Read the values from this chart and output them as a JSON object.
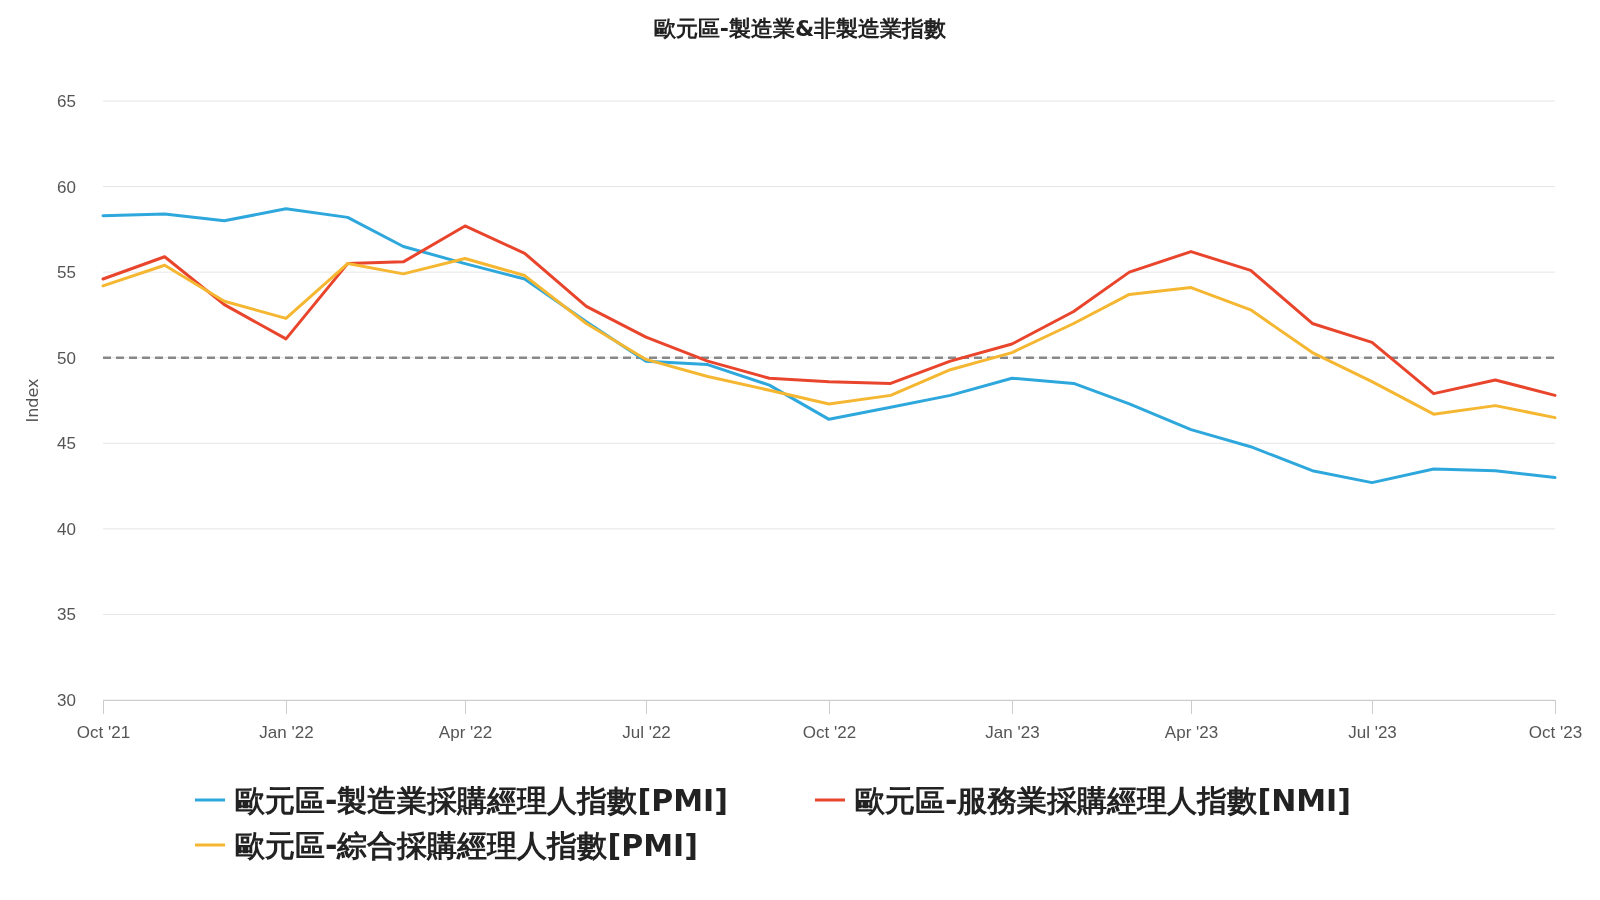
{
  "chart_data": {
    "type": "line",
    "title": "歐元區-製造業&非製造業指數",
    "ylabel": "Index",
    "x": [
      "2021-10",
      "2021-11",
      "2021-12",
      "2022-01",
      "2022-02",
      "2022-03",
      "2022-04",
      "2022-05",
      "2022-06",
      "2022-07",
      "2022-08",
      "2022-09",
      "2022-10",
      "2022-11",
      "2022-12",
      "2023-01",
      "2023-02",
      "2023-03",
      "2023-04",
      "2023-05",
      "2023-06",
      "2023-07",
      "2023-08",
      "2023-09",
      "2023-10"
    ],
    "series": [
      {
        "name": "歐元區-製造業採購經理人指數[PMI]",
        "color": "#2ea8dc",
        "values": [
          58.3,
          58.4,
          58.0,
          58.7,
          58.2,
          56.5,
          55.5,
          54.6,
          52.1,
          49.8,
          49.6,
          48.4,
          46.4,
          47.1,
          47.8,
          48.8,
          48.5,
          47.3,
          45.8,
          44.8,
          43.4,
          42.7,
          43.5,
          43.4,
          43.0
        ]
      },
      {
        "name": "歐元區-服務業採購經理人指數[NMI]",
        "color": "#e8452c",
        "values": [
          54.6,
          55.9,
          53.1,
          51.1,
          55.5,
          55.6,
          57.7,
          56.1,
          53.0,
          51.2,
          49.8,
          48.8,
          48.6,
          48.5,
          49.8,
          50.8,
          52.7,
          55.0,
          56.2,
          55.1,
          52.0,
          50.9,
          47.9,
          48.7,
          47.8
        ]
      },
      {
        "name": "歐元區-綜合採購經理人指數[PMI]",
        "color": "#f5b731",
        "values": [
          54.2,
          55.4,
          53.3,
          52.3,
          55.5,
          54.9,
          55.8,
          54.8,
          52.0,
          49.9,
          48.9,
          48.1,
          47.3,
          47.8,
          49.3,
          50.3,
          52.0,
          53.7,
          54.1,
          52.8,
          50.3,
          48.6,
          46.7,
          47.2,
          46.5
        ]
      }
    ],
    "xlim": [
      "2021-10",
      "2023-10"
    ],
    "xticks": [
      {
        "value": "2021-10",
        "label": "Oct '21"
      },
      {
        "value": "2022-01",
        "label": "Jan '22"
      },
      {
        "value": "2022-04",
        "label": "Apr '22"
      },
      {
        "value": "2022-07",
        "label": "Jul '22"
      },
      {
        "value": "2022-10",
        "label": "Oct '22"
      },
      {
        "value": "2023-01",
        "label": "Jan '23"
      },
      {
        "value": "2023-04",
        "label": "Apr '23"
      },
      {
        "value": "2023-07",
        "label": "Jul '23"
      },
      {
        "value": "2023-10",
        "label": "Oct '23"
      }
    ],
    "ylim": [
      30,
      65
    ],
    "yticks": [
      30,
      35,
      40,
      45,
      50,
      55,
      60,
      65
    ],
    "ref_lines": [
      {
        "axis": "y",
        "value": 50,
        "color": "#888888",
        "line_style": "dashed"
      }
    ],
    "grid": "y",
    "legend": "bottom",
    "marker": "none",
    "line_style": "solid"
  }
}
